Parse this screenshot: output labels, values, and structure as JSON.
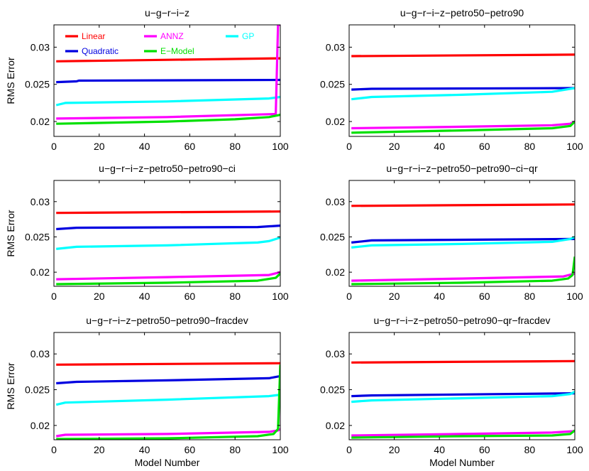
{
  "chart_data": {
    "type": "line",
    "xlabel": "Model Number",
    "ylabel": "RMS Error",
    "xlim": [
      0,
      100
    ],
    "ylim": [
      0.018,
      0.033
    ],
    "xticks": [
      "0",
      "20",
      "40",
      "60",
      "80",
      "100"
    ],
    "yticks": [
      "0.02",
      "0.025",
      "0.03"
    ],
    "legend": [
      {
        "name": "Linear",
        "color": "#ff0000"
      },
      {
        "name": "Quadratic",
        "color": "#0000e0"
      },
      {
        "name": "ANNZ",
        "color": "#ff00ff"
      },
      {
        "name": "E−Model",
        "color": "#00e000"
      },
      {
        "name": "GP",
        "color": "#00ffff"
      }
    ],
    "panels": [
      {
        "title": "u−g−r−i−z",
        "series": [
          {
            "name": "Linear",
            "color": "#ff0000",
            "x": [
              1,
              100
            ],
            "values": [
              0.0281,
              0.0285
            ]
          },
          {
            "name": "Quadratic",
            "color": "#0000e0",
            "x": [
              1,
              10,
              11,
              100
            ],
            "values": [
              0.0253,
              0.0254,
              0.0255,
              0.0256
            ]
          },
          {
            "name": "GP",
            "color": "#00ffff",
            "x": [
              1,
              5,
              50,
              95,
              100
            ],
            "values": [
              0.0222,
              0.0225,
              0.0227,
              0.0231,
              0.0233
            ]
          },
          {
            "name": "ANNZ",
            "color": "#ff00ff",
            "x": [
              1,
              50,
              97,
              98,
              99,
              100
            ],
            "values": [
              0.0204,
              0.0206,
              0.021,
              0.021,
              0.033,
              0.033
            ]
          },
          {
            "name": "E−Model",
            "color": "#00e000",
            "x": [
              1,
              50,
              80,
              95,
              100
            ],
            "values": [
              0.0197,
              0.02,
              0.0203,
              0.0206,
              0.0209
            ]
          }
        ]
      },
      {
        "title": "u−g−r−i−z−petro50−petro90",
        "series": [
          {
            "name": "Linear",
            "color": "#ff0000",
            "x": [
              1,
              100
            ],
            "values": [
              0.0288,
              0.029
            ]
          },
          {
            "name": "Quadratic",
            "color": "#0000e0",
            "x": [
              1,
              10,
              100
            ],
            "values": [
              0.0243,
              0.0244,
              0.0245
            ]
          },
          {
            "name": "GP",
            "color": "#00ffff",
            "x": [
              1,
              10,
              50,
              90,
              100
            ],
            "values": [
              0.023,
              0.0233,
              0.0236,
              0.024,
              0.0245
            ]
          },
          {
            "name": "ANNZ",
            "color": "#ff00ff",
            "x": [
              1,
              50,
              90,
              98,
              100
            ],
            "values": [
              0.0191,
              0.0193,
              0.0195,
              0.0197,
              0.02
            ]
          },
          {
            "name": "E−Model",
            "color": "#00e000",
            "x": [
              1,
              50,
              90,
              98,
              100
            ],
            "values": [
              0.0185,
              0.0188,
              0.0191,
              0.0194,
              0.02
            ]
          }
        ]
      },
      {
        "title": "u−g−r−i−z−petro50−petro90−ci",
        "series": [
          {
            "name": "Linear",
            "color": "#ff0000",
            "x": [
              1,
              100
            ],
            "values": [
              0.0284,
              0.0286
            ]
          },
          {
            "name": "Quadratic",
            "color": "#0000e0",
            "x": [
              1,
              10,
              90,
              100
            ],
            "values": [
              0.0261,
              0.0263,
              0.0264,
              0.0266
            ]
          },
          {
            "name": "GP",
            "color": "#00ffff",
            "x": [
              1,
              10,
              50,
              90,
              95,
              100
            ],
            "values": [
              0.0233,
              0.0236,
              0.0238,
              0.0242,
              0.0244,
              0.0249
            ]
          },
          {
            "name": "ANNZ",
            "color": "#ff00ff",
            "x": [
              1,
              50,
              95,
              100
            ],
            "values": [
              0.019,
              0.0193,
              0.0196,
              0.02
            ]
          },
          {
            "name": "E−Model",
            "color": "#00e000",
            "x": [
              1,
              50,
              90,
              98,
              100
            ],
            "values": [
              0.0183,
              0.0185,
              0.0188,
              0.0192,
              0.0198
            ]
          }
        ]
      },
      {
        "title": "u−g−r−i−z−petro50−petro90−ci−qr",
        "series": [
          {
            "name": "Linear",
            "color": "#ff0000",
            "x": [
              1,
              100
            ],
            "values": [
              0.0294,
              0.0296
            ]
          },
          {
            "name": "Quadratic",
            "color": "#0000e0",
            "x": [
              1,
              10,
              100
            ],
            "values": [
              0.0242,
              0.0245,
              0.0247
            ]
          },
          {
            "name": "GP",
            "color": "#00ffff",
            "x": [
              1,
              10,
              50,
              90,
              98,
              100
            ],
            "values": [
              0.0235,
              0.0238,
              0.024,
              0.0243,
              0.0247,
              0.025
            ]
          },
          {
            "name": "ANNZ",
            "color": "#ff00ff",
            "x": [
              1,
              50,
              95,
              100
            ],
            "values": [
              0.0188,
              0.0191,
              0.0194,
              0.0198
            ]
          },
          {
            "name": "E−Model",
            "color": "#00e000",
            "x": [
              1,
              50,
              90,
              97,
              99,
              100
            ],
            "values": [
              0.0183,
              0.0185,
              0.0188,
              0.0191,
              0.0196,
              0.0222
            ]
          }
        ]
      },
      {
        "title": "u−g−r−i−z−petro50−petro90−fracdev",
        "series": [
          {
            "name": "Linear",
            "color": "#ff0000",
            "x": [
              1,
              100
            ],
            "values": [
              0.0285,
              0.0287
            ]
          },
          {
            "name": "Quadratic",
            "color": "#0000e0",
            "x": [
              1,
              10,
              50,
              95,
              100
            ],
            "values": [
              0.0259,
              0.0261,
              0.0263,
              0.0266,
              0.0269
            ]
          },
          {
            "name": "GP",
            "color": "#00ffff",
            "x": [
              1,
              5,
              50,
              95,
              100
            ],
            "values": [
              0.0229,
              0.0232,
              0.0236,
              0.0241,
              0.0243
            ]
          },
          {
            "name": "ANNZ",
            "color": "#ff00ff",
            "x": [
              1,
              5,
              50,
              95,
              99,
              100
            ],
            "values": [
              0.0185,
              0.0187,
              0.0188,
              0.0191,
              0.0193,
              0.0195
            ]
          },
          {
            "name": "E−Model",
            "color": "#00e000",
            "x": [
              1,
              50,
              90,
              97,
              99,
              100
            ],
            "values": [
              0.0181,
              0.0182,
              0.0185,
              0.0188,
              0.0195,
              0.0285
            ]
          }
        ]
      },
      {
        "title": "u−g−r−i−z−petro50−petro90−qr−fracdev",
        "series": [
          {
            "name": "Linear",
            "color": "#ff0000",
            "x": [
              1,
              100
            ],
            "values": [
              0.0288,
              0.029
            ]
          },
          {
            "name": "Quadratic",
            "color": "#0000e0",
            "x": [
              1,
              10,
              100
            ],
            "values": [
              0.0241,
              0.0242,
              0.0245
            ]
          },
          {
            "name": "GP",
            "color": "#00ffff",
            "x": [
              1,
              10,
              50,
              90,
              98,
              100
            ],
            "values": [
              0.0233,
              0.0235,
              0.0238,
              0.0241,
              0.0244,
              0.0247
            ]
          },
          {
            "name": "ANNZ",
            "color": "#ff00ff",
            "x": [
              1,
              50,
              90,
              100
            ],
            "values": [
              0.0186,
              0.0188,
              0.019,
              0.0192
            ]
          },
          {
            "name": "E−Model",
            "color": "#00e000",
            "x": [
              1,
              50,
              90,
              98,
              100
            ],
            "values": [
              0.0183,
              0.0185,
              0.0186,
              0.0188,
              0.0193
            ]
          }
        ]
      }
    ]
  }
}
